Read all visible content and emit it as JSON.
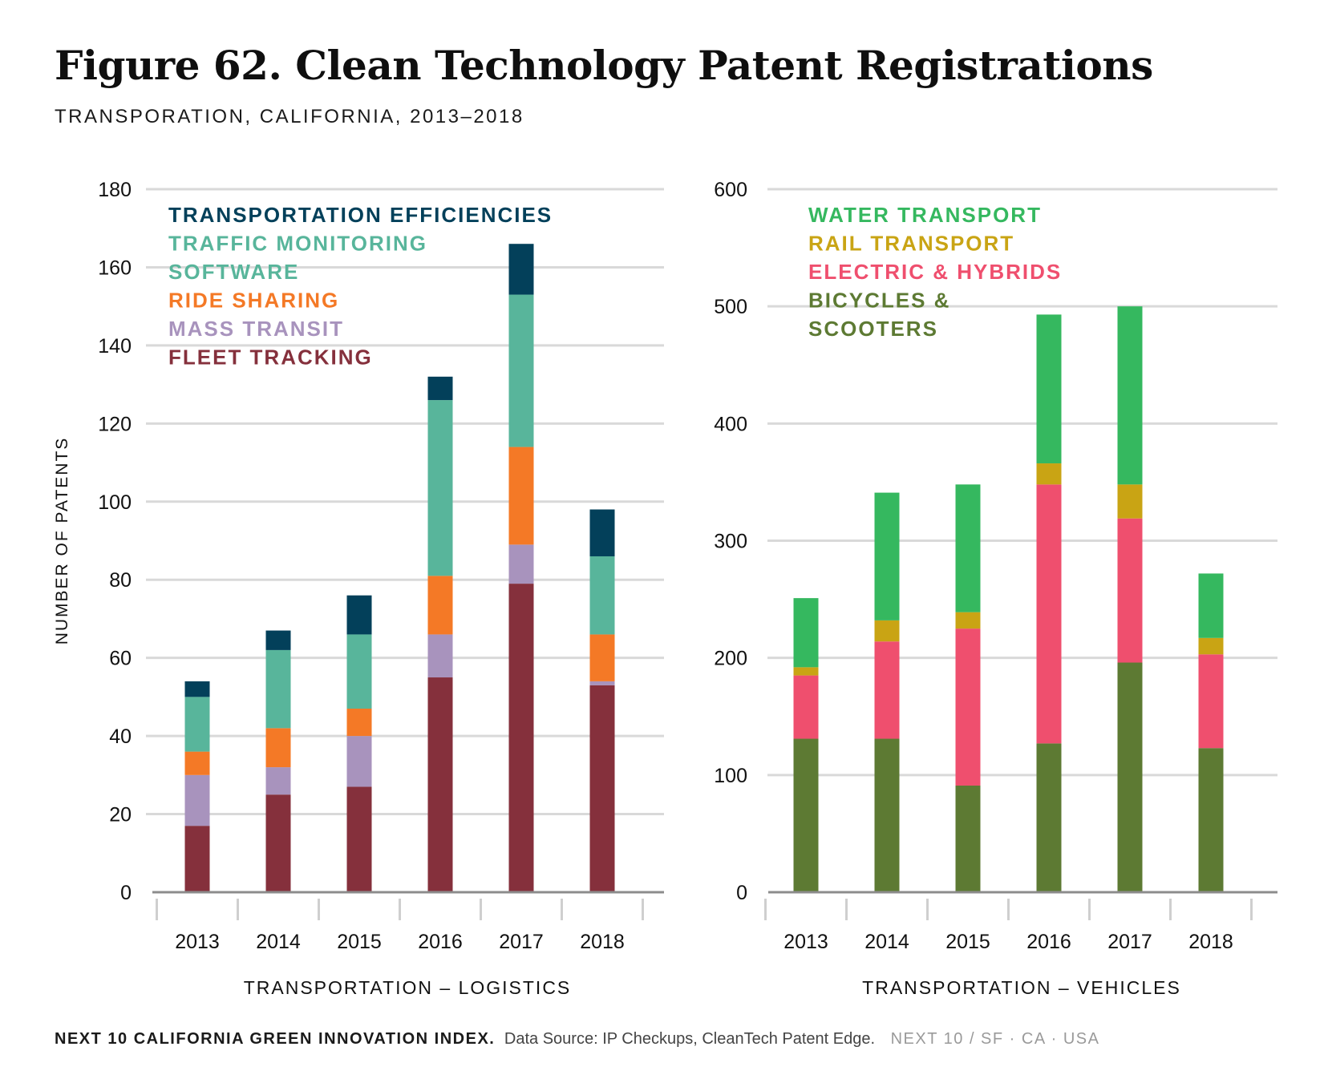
{
  "title": "Figure 62. Clean Technology Patent Registrations",
  "subtitle": "TRANSPORATION, CALIFORNIA, 2013–2018",
  "footer": {
    "index": "NEXT 10 CALIFORNIA GREEN INNOVATION INDEX.",
    "source": "Data Source: IP Checkups, CleanTech Patent Edge.",
    "org": "NEXT 10  /  SF · CA · USA"
  },
  "chart_data": [
    {
      "type": "bar",
      "stacked": true,
      "title": "",
      "xlabel": "TRANSPORTATION – LOGISTICS",
      "ylabel": "NUMBER OF PATENTS",
      "ylim": [
        0,
        180
      ],
      "yticks": [
        0,
        20,
        40,
        60,
        80,
        100,
        120,
        140,
        160,
        180
      ],
      "grid": true,
      "legend_position": "top-left",
      "categories": [
        "2013",
        "2014",
        "2015",
        "2016",
        "2017",
        "2018"
      ],
      "series": [
        {
          "name": "FLEET TRACKING",
          "color": "#85303c",
          "values": [
            17,
            25,
            27,
            55,
            79,
            53
          ]
        },
        {
          "name": "MASS TRANSIT",
          "color": "#a893bd",
          "values": [
            13,
            7,
            13,
            11,
            10,
            1
          ]
        },
        {
          "name": "RIDE SHARING",
          "color": "#f47926",
          "values": [
            6,
            10,
            7,
            15,
            25,
            12
          ]
        },
        {
          "name": "TRAFFIC MONITORING SOFTWARE",
          "legend_lines": [
            "TRAFFIC MONITORING",
            "SOFTWARE"
          ],
          "color": "#58b59b",
          "values": [
            14,
            20,
            19,
            45,
            39,
            20
          ]
        },
        {
          "name": "TRANSPORTATION EFFICIENCIES",
          "color": "#03405a",
          "values": [
            4,
            5,
            10,
            6,
            13,
            12
          ]
        }
      ]
    },
    {
      "type": "bar",
      "stacked": true,
      "title": "",
      "xlabel": "TRANSPORTATION – VEHICLES",
      "ylabel": "",
      "ylim": [
        0,
        600
      ],
      "yticks": [
        0,
        100,
        200,
        300,
        400,
        500,
        600
      ],
      "grid": true,
      "legend_position": "top-left",
      "categories": [
        "2013",
        "2014",
        "2015",
        "2016",
        "2017",
        "2018"
      ],
      "series": [
        {
          "name": "BICYCLES & SCOOTERS",
          "legend_lines": [
            "BICYCLES &",
            "SCOOTERS"
          ],
          "color": "#5d7a33",
          "values": [
            131,
            131,
            91,
            127,
            196,
            123
          ]
        },
        {
          "name": "ELECTRIC & HYBRIDS",
          "color": "#ef4f6e",
          "values": [
            54,
            83,
            134,
            221,
            123,
            80
          ]
        },
        {
          "name": "RAIL TRANSPORT",
          "color": "#c9a414",
          "values": [
            7,
            18,
            14,
            18,
            29,
            14
          ]
        },
        {
          "name": "WATER TRANSPORT",
          "color": "#35b85f",
          "values": [
            59,
            109,
            109,
            127,
            152,
            55
          ]
        }
      ]
    }
  ]
}
